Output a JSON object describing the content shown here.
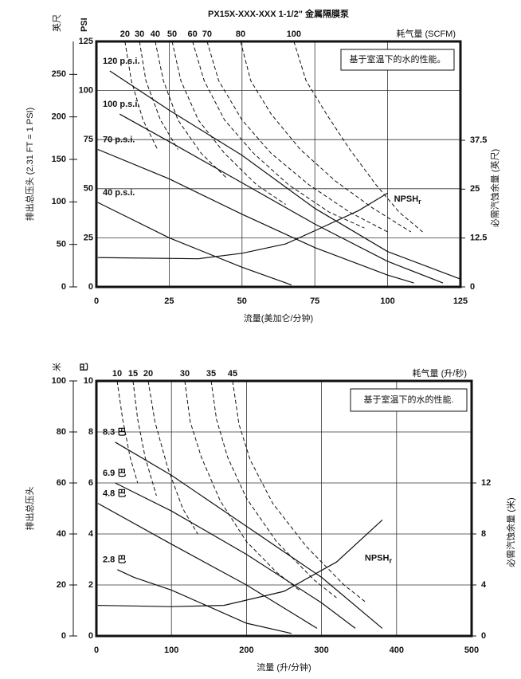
{
  "chart_data": [
    {
      "type": "line",
      "title": "PX15X-XXX-XXX 1-1/2\" 金属隔膜泵",
      "xlabel": "流量(美加仑/分钟)",
      "ylabel": "排出总压头 (2.31 FT = 1 PSI)",
      "y2label": "必需汽蚀余量 (英尺)",
      "note": "基于室温下的水的性能。",
      "grid": true,
      "xlim": [
        0,
        125
      ],
      "xticks": [
        0,
        25,
        50,
        75,
        100,
        125
      ],
      "yunit": "PSI",
      "ylim": [
        0,
        125
      ],
      "yticks": [
        0,
        25,
        50,
        75,
        100,
        125
      ],
      "y_outer": {
        "unit": "英尺",
        "lim": [
          0,
          288.75
        ],
        "ticks": [
          0,
          50,
          100,
          150,
          200,
          250
        ]
      },
      "y2lim": [
        0,
        62.77
      ],
      "y2ticks": [
        0,
        12.5,
        25,
        37.5
      ],
      "series": [
        {
          "name": "120 p.s.i.",
          "color": "#111111",
          "x": [
            4.6,
            25,
            50,
            75,
            100,
            125
          ],
          "values": [
            110,
            90,
            67,
            40,
            18,
            4
          ]
        },
        {
          "name": "100 p.s.i.",
          "color": "#111111",
          "x": [
            8,
            25,
            50,
            75,
            100,
            119
          ],
          "values": [
            88,
            74,
            53,
            32,
            13,
            2
          ]
        },
        {
          "name": "70 p.s.i.",
          "color": "#111111",
          "x": [
            0.5,
            25,
            50,
            75,
            100,
            109
          ],
          "values": [
            70,
            55,
            37,
            20,
            6,
            2
          ]
        },
        {
          "name": "40 p.s.i.",
          "color": "#111111",
          "x": [
            0.5,
            25,
            50,
            67
          ],
          "values": [
            43,
            25,
            10,
            1
          ]
        },
        {
          "name": "NPSH",
          "name_sub": "r",
          "axis": "y2",
          "color": "#111111",
          "x": [
            0.5,
            35,
            50,
            65,
            76,
            90,
            100
          ],
          "values": [
            7.5,
            7.2,
            8.6,
            11,
            14.7,
            19.5,
            24
          ]
        }
      ],
      "air": {
        "label": "耗气量 (SCFM)",
        "color": "#111111",
        "series": [
          {
            "name": "20",
            "x": [
              9.8,
              12,
              16,
              21
            ],
            "values": [
              125,
              105,
              85,
              70
            ]
          },
          {
            "name": "30",
            "x": [
              14.8,
              17,
              22,
              28
            ],
            "values": [
              125,
              105,
              85,
              70
            ]
          },
          {
            "name": "40",
            "x": [
              20.2,
              23,
              28,
              36,
              45
            ],
            "values": [
              125,
              105,
              85,
              68,
              55
            ]
          },
          {
            "name": "50",
            "x": [
              26,
              29,
              35,
              44,
              55,
              65
            ],
            "values": [
              125,
              105,
              85,
              68,
              52,
              42
            ]
          },
          {
            "name": "60",
            "x": [
              33,
              37,
              44,
              54,
              66,
              80,
              92
            ],
            "values": [
              125,
              105,
              85,
              68,
              52,
              38,
              30
            ]
          },
          {
            "name": "70",
            "x": [
              38,
              42,
              50,
              60,
              73,
              87,
              100
            ],
            "values": [
              125,
              105,
              85,
              68,
              52,
              38,
              28
            ]
          },
          {
            "name": "80",
            "x": [
              49.5,
              53,
              60,
              70,
              82,
              95,
              108
            ],
            "values": [
              125,
              105,
              88,
              70,
              54,
              40,
              28
            ]
          },
          {
            "name": "100",
            "x": [
              67.8,
              72,
              79,
              87,
              96,
              104,
              112
            ],
            "values": [
              125,
              105,
              88,
              70,
              52,
              38,
              28
            ]
          }
        ]
      }
    },
    {
      "type": "line",
      "xlabel": "流量 (升/分钟)",
      "ylabel": "排出总压头",
      "y2label": "必需汽蚀余量 (米)",
      "note": "基于室温下的水的性能.",
      "grid": true,
      "xlim": [
        0,
        500
      ],
      "xticks": [
        0,
        100,
        200,
        300,
        400,
        500
      ],
      "yunit": "巴",
      "ylim": [
        0,
        10
      ],
      "yticks": [
        0,
        2,
        4,
        6,
        8,
        10
      ],
      "y_outer": {
        "unit": "米",
        "lim": [
          0,
          100
        ],
        "ticks": [
          0,
          20,
          40,
          60,
          80,
          100
        ]
      },
      "y2lim": [
        0,
        20
      ],
      "y2ticks": [
        0,
        4,
        8,
        12
      ],
      "series": [
        {
          "name": "8.3 巴",
          "color": "#111111",
          "x": [
            25,
            100,
            200,
            300,
            381
          ],
          "values": [
            7.6,
            6.3,
            4.3,
            2.3,
            0.3
          ]
        },
        {
          "name": "6.9 巴",
          "color": "#111111",
          "x": [
            25,
            100,
            200,
            300,
            345
          ],
          "values": [
            6,
            4.9,
            3.2,
            1.3,
            0.3
          ]
        },
        {
          "name": "4.8 巴",
          "color": "#111111",
          "x": [
            2,
            100,
            200,
            294
          ],
          "values": [
            5.2,
            3.6,
            2,
            0.3
          ]
        },
        {
          "name": "2.8 巴",
          "color": "#111111",
          "x": [
            28,
            50,
            100,
            200,
            260
          ],
          "values": [
            2.6,
            2.3,
            1.8,
            0.5,
            0.1
          ]
        },
        {
          "name": "NPSH",
          "name_sub": "r",
          "axis": "y2",
          "color": "#111111",
          "x": [
            2,
            100,
            170,
            250,
            320,
            381
          ],
          "values": [
            2.4,
            2.3,
            2.4,
            3.5,
            5.8,
            9.1
          ]
        }
      ],
      "air": {
        "label": "耗气量 (升/秒)",
        "color": "#111111",
        "series": [
          {
            "name": "10",
            "x": [
              27.6,
              35,
              45,
              55
            ],
            "values": [
              10,
              8.5,
              7,
              6
            ]
          },
          {
            "name": "15",
            "x": [
              48.8,
              55,
              65,
              80
            ],
            "values": [
              10,
              8.5,
              7,
              5.5
            ]
          },
          {
            "name": "20",
            "x": [
              69,
              78,
              95,
              115,
              135
            ],
            "values": [
              10,
              8.4,
              6.6,
              5,
              4
            ]
          },
          {
            "name": "30",
            "x": [
              117.8,
              125,
              140,
              165,
              200,
              240,
              270
            ],
            "values": [
              10,
              8.4,
              7,
              5.3,
              3.7,
              2.5,
              1.8
            ]
          },
          {
            "name": "35",
            "x": [
              152.9,
              160,
              175,
              200,
              240,
              290,
              320
            ],
            "values": [
              10,
              8.5,
              7,
              5.4,
              3.7,
              2.2,
              1.5
            ]
          },
          {
            "name": "45",
            "x": [
              181.5,
              190,
              205,
              235,
              280,
              330,
              360
            ],
            "values": [
              10,
              8.3,
              6.9,
              5.2,
              3.5,
              2,
              1.3
            ]
          }
        ]
      }
    }
  ]
}
